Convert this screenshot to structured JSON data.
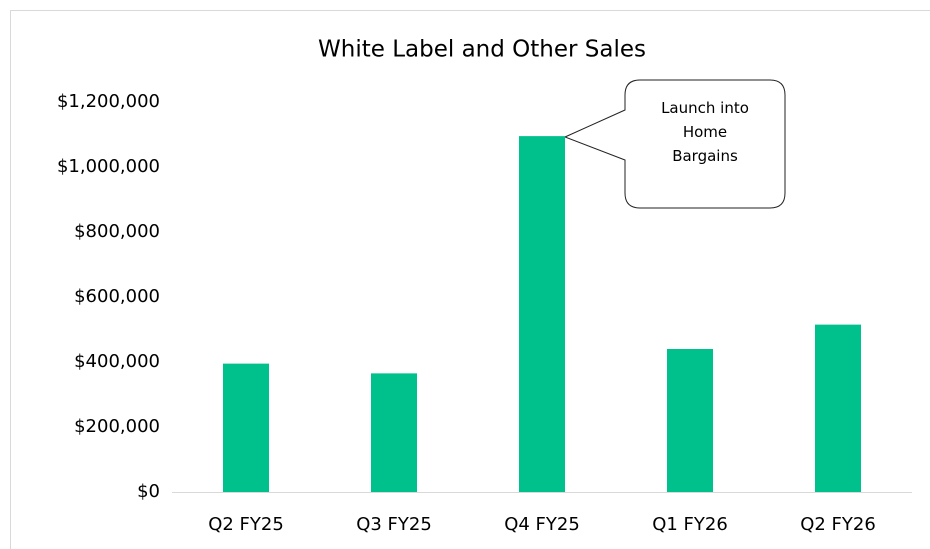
{
  "chart_data": {
    "type": "bar",
    "title": "White Label and Other Sales",
    "categories": [
      "Q2 FY25",
      "Q3 FY25",
      "Q4 FY25",
      "Q1 FY26",
      "Q2 FY26"
    ],
    "values": [
      395000,
      365000,
      1095000,
      440000,
      515000
    ],
    "color": "#00c08b",
    "ylim": [
      0,
      1200000
    ],
    "yticks": [
      {
        "value": 0,
        "label": "$0"
      },
      {
        "value": 200000,
        "label": "$200,000"
      },
      {
        "value": 400000,
        "label": "$400,000"
      },
      {
        "value": 600000,
        "label": "$600,000"
      },
      {
        "value": 800000,
        "label": "$800,000"
      },
      {
        "value": 1000000,
        "label": "$1,000,000"
      },
      {
        "value": 1200000,
        "label": "$1,200,000"
      }
    ],
    "grid": false,
    "annotation": "Launch into Home Bargains"
  }
}
